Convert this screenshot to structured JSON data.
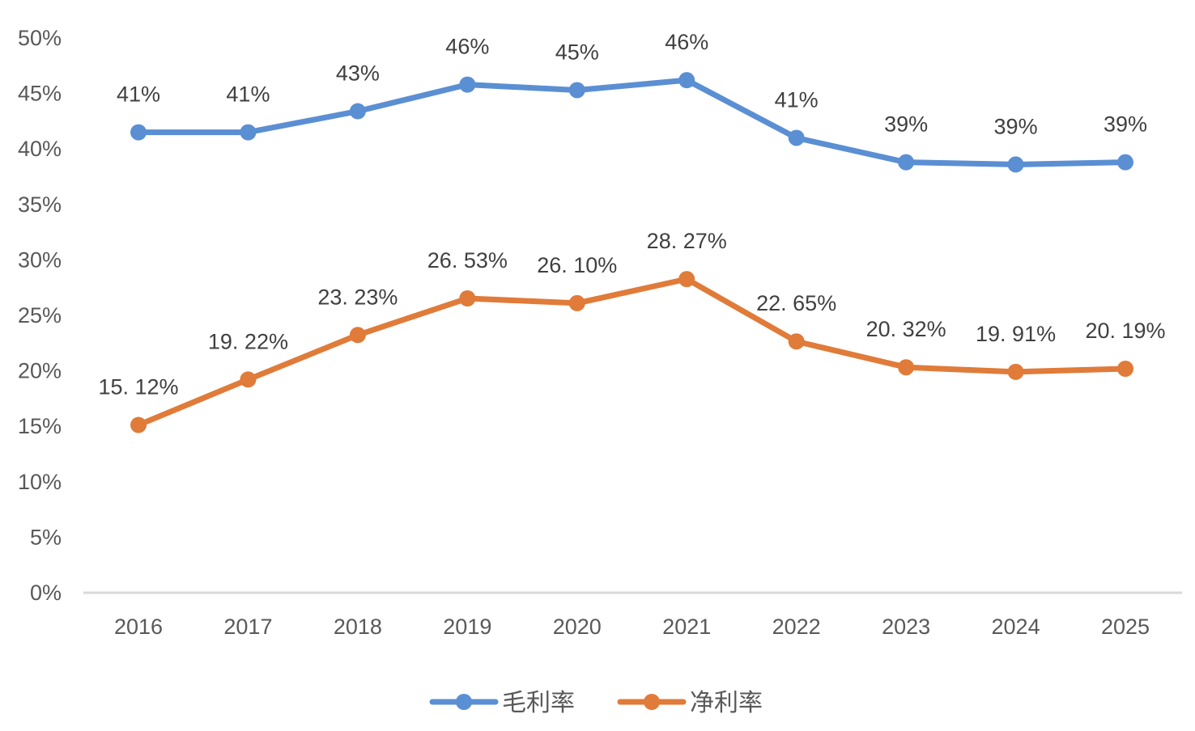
{
  "chart_data": {
    "type": "line",
    "title": "",
    "xlabel": "",
    "ylabel": "",
    "categories": [
      "2016",
      "2017",
      "2018",
      "2019",
      "2020",
      "2021",
      "2022",
      "2023",
      "2024",
      "2025"
    ],
    "ylim": [
      0,
      50
    ],
    "y_ticks": [
      "0%",
      "5%",
      "10%",
      "15%",
      "20%",
      "25%",
      "30%",
      "35%",
      "40%",
      "45%",
      "50%"
    ],
    "grid": false,
    "legend_position": "bottom",
    "series": [
      {
        "name": "毛利率",
        "color": "#5B8FD3",
        "values": [
          41.5,
          41.5,
          43.4,
          45.8,
          45.3,
          46.2,
          41.0,
          38.8,
          38.6,
          38.8
        ],
        "labels": [
          "41%",
          "41%",
          "43%",
          "46%",
          "45%",
          "46%",
          "41%",
          "39%",
          "39%",
          "39%"
        ]
      },
      {
        "name": "净利率",
        "color": "#E07B39",
        "values": [
          15.12,
          19.22,
          23.23,
          26.53,
          26.1,
          28.27,
          22.65,
          20.32,
          19.91,
          20.19
        ],
        "labels": [
          "15. 12%",
          "19. 22%",
          "23. 23%",
          "26. 53%",
          "26. 10%",
          "28. 27%",
          "22. 65%",
          "20. 32%",
          "19. 91%",
          "20. 19%"
        ]
      }
    ]
  }
}
